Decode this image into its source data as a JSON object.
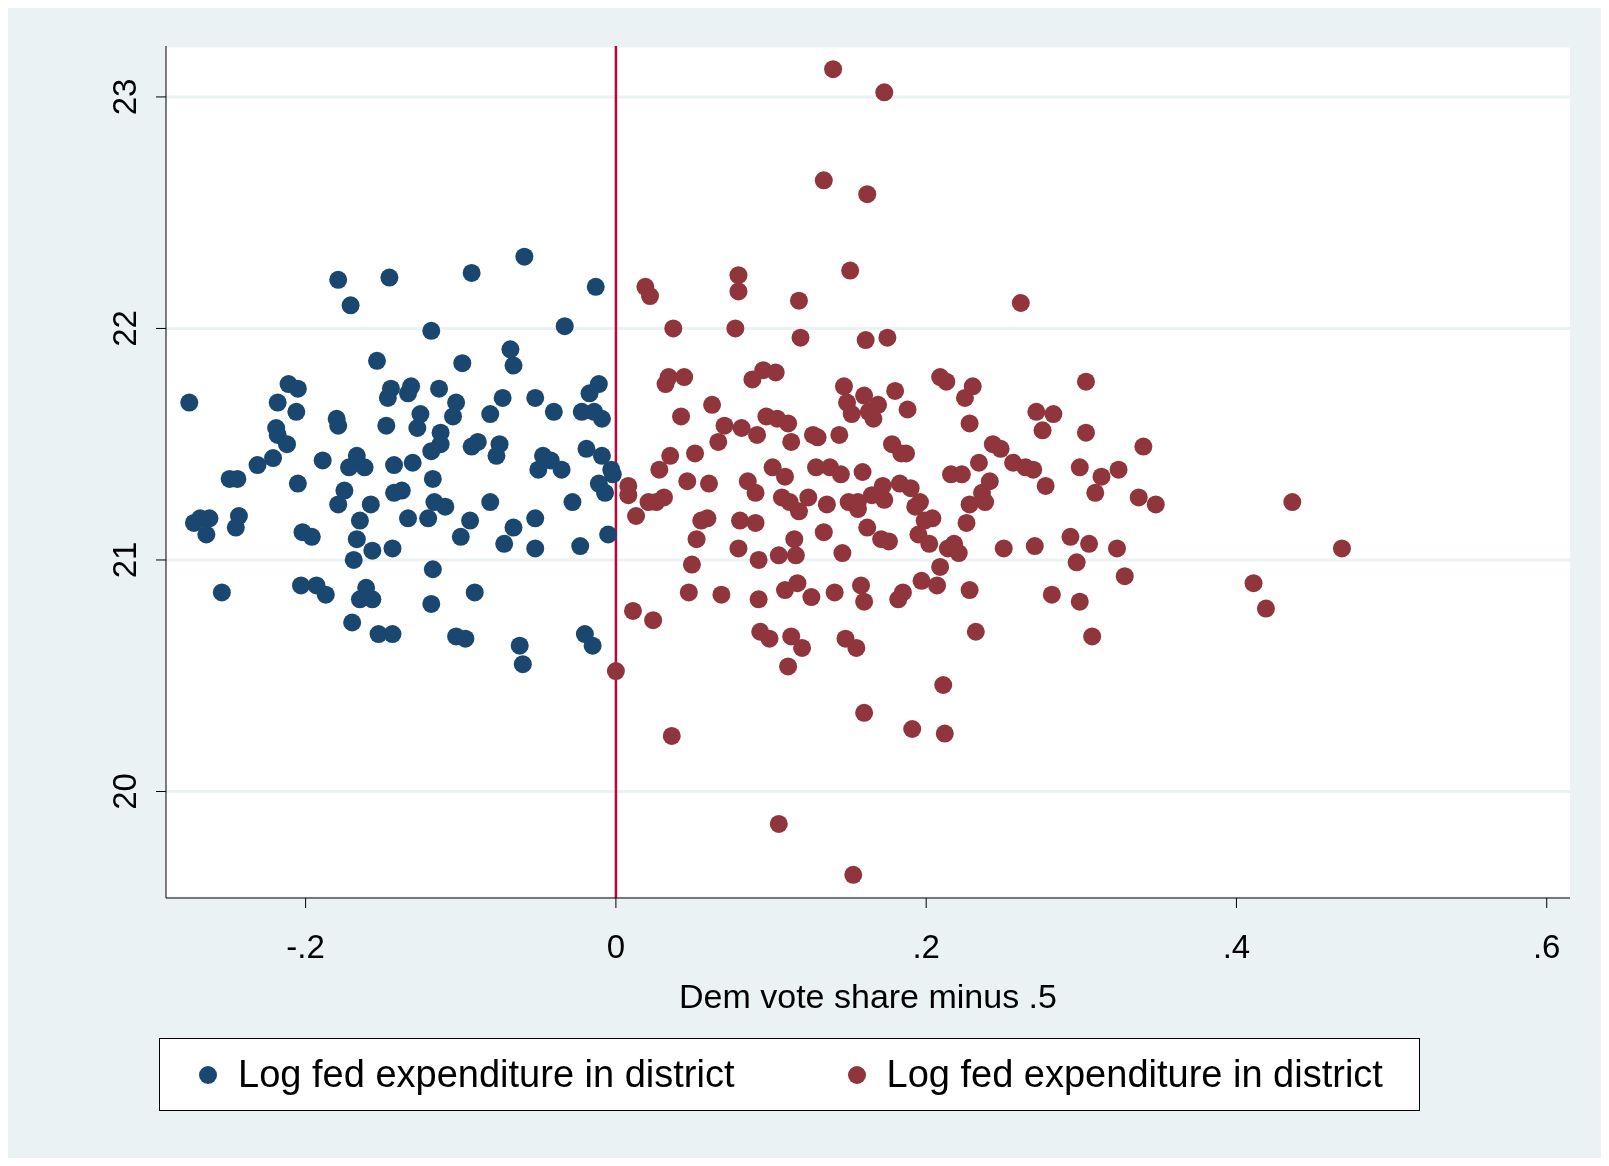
{
  "chart_data": {
    "type": "scatter",
    "xlabel": "Dem vote share minus .5",
    "xlim": [
      -0.29,
      0.615
    ],
    "ylim": [
      19.54,
      23.22
    ],
    "xticks": [
      {
        "value": -0.2,
        "label": "-.2"
      },
      {
        "value": 0,
        "label": "0"
      },
      {
        "value": 0.2,
        "label": ".2"
      },
      {
        "value": 0.4,
        "label": ".4"
      },
      {
        "value": 0.6,
        "label": ".6"
      }
    ],
    "yticks": [
      20,
      21,
      22,
      23
    ],
    "grid": "y",
    "legend": "bottom",
    "marker": "circle",
    "ref_lines": [
      {
        "axis": "x",
        "value": 0,
        "color": "#c10534"
      }
    ],
    "series": [
      {
        "name": "Log fed expenditure in district",
        "color": "#1a476f",
        "x": [
          -0.275,
          -0.272,
          -0.268,
          -0.262,
          -0.264,
          -0.254,
          -0.249,
          -0.244,
          -0.245,
          -0.243,
          -0.231,
          -0.221,
          -0.218,
          -0.219,
          -0.218,
          -0.212,
          -0.211,
          -0.206,
          -0.205,
          -0.205,
          -0.203,
          -0.202,
          -0.196,
          -0.193,
          -0.187,
          -0.189,
          -0.18,
          -0.179,
          -0.179,
          -0.179,
          -0.171,
          -0.172,
          -0.175,
          -0.17,
          -0.169,
          -0.167,
          -0.167,
          -0.165,
          -0.165,
          -0.161,
          -0.162,
          -0.158,
          -0.157,
          -0.157,
          -0.154,
          -0.153,
          -0.147,
          -0.148,
          -0.146,
          -0.145,
          -0.144,
          -0.144,
          -0.143,
          -0.143,
          -0.138,
          -0.134,
          -0.134,
          -0.132,
          -0.131,
          -0.128,
          -0.126,
          -0.121,
          -0.119,
          -0.119,
          -0.119,
          -0.118,
          -0.118,
          -0.117,
          -0.114,
          -0.113,
          -0.113,
          -0.11,
          -0.105,
          -0.103,
          -0.103,
          -0.1,
          -0.099,
          -0.097,
          -0.094,
          -0.093,
          -0.093,
          -0.091,
          -0.089,
          -0.081,
          -0.081,
          -0.077,
          -0.075,
          -0.072,
          -0.073,
          -0.068,
          -0.066,
          -0.066,
          -0.059,
          -0.062,
          -0.06,
          -0.052,
          -0.052,
          -0.052,
          -0.05,
          -0.047,
          -0.042,
          -0.04,
          -0.035,
          -0.033,
          -0.028,
          -0.023,
          -0.022,
          -0.02,
          -0.019,
          -0.015,
          -0.017,
          -0.014,
          -0.013,
          -0.011,
          -0.011,
          -0.009,
          -0.009,
          -0.007,
          -0.005,
          -0.003,
          -0.002
        ],
        "values": [
          21.68,
          21.16,
          21.18,
          21.18,
          21.11,
          20.86,
          21.35,
          21.35,
          21.14,
          21.19,
          21.41,
          21.44,
          21.68,
          21.57,
          21.54,
          21.5,
          21.76,
          21.64,
          21.74,
          21.33,
          20.89,
          21.12,
          21.1,
          20.89,
          20.85,
          21.43,
          21.61,
          21.58,
          21.24,
          22.21,
          22.1,
          21.4,
          21.3,
          20.73,
          21.0,
          21.45,
          21.09,
          20.83,
          21.17,
          20.88,
          21.4,
          21.24,
          20.83,
          21.04,
          21.86,
          20.68,
          21.7,
          21.58,
          22.22,
          21.74,
          20.68,
          21.05,
          21.41,
          21.29,
          21.3,
          21.18,
          21.72,
          21.75,
          21.42,
          21.57,
          21.63,
          21.18,
          21.99,
          21.47,
          20.81,
          20.96,
          21.35,
          21.25,
          21.74,
          21.55,
          21.5,
          21.23,
          21.62,
          21.68,
          20.67,
          21.1,
          21.85,
          20.66,
          21.17,
          21.49,
          22.24,
          20.86,
          21.51,
          21.63,
          21.25,
          21.45,
          21.5,
          21.07,
          21.7,
          21.91,
          21.84,
          21.14,
          22.31,
          20.63,
          20.55,
          21.05,
          21.18,
          21.7,
          21.39,
          21.45,
          21.43,
          21.64,
          21.39,
          22.01,
          21.25,
          21.06,
          21.64,
          20.68,
          21.48,
          20.63,
          21.72,
          21.64,
          22.18,
          21.76,
          21.33,
          21.61,
          21.45,
          21.29,
          21.11,
          21.39,
          21.37
        ]
      },
      {
        "name": "Log fed expenditure in district",
        "color": "#90353b",
        "x": [
          0.0,
          0.008,
          0.008,
          0.011,
          0.013,
          0.019,
          0.021,
          0.022,
          0.024,
          0.026,
          0.028,
          0.031,
          0.032,
          0.034,
          0.035,
          0.036,
          0.037,
          0.042,
          0.044,
          0.046,
          0.047,
          0.049,
          0.051,
          0.052,
          0.055,
          0.059,
          0.06,
          0.062,
          0.066,
          0.068,
          0.07,
          0.077,
          0.079,
          0.079,
          0.079,
          0.08,
          0.081,
          0.085,
          0.088,
          0.09,
          0.09,
          0.091,
          0.092,
          0.092,
          0.093,
          0.095,
          0.097,
          0.099,
          0.101,
          0.103,
          0.104,
          0.105,
          0.105,
          0.107,
          0.109,
          0.109,
          0.111,
          0.111,
          0.112,
          0.113,
          0.113,
          0.115,
          0.116,
          0.117,
          0.118,
          0.118,
          0.119,
          0.12,
          0.124,
          0.126,
          0.127,
          0.129,
          0.13,
          0.134,
          0.134,
          0.136,
          0.138,
          0.14,
          0.141,
          0.144,
          0.145,
          0.146,
          0.147,
          0.148,
          0.149,
          0.15,
          0.151,
          0.152,
          0.153,
          0.155,
          0.156,
          0.156,
          0.158,
          0.159,
          0.16,
          0.16,
          0.16,
          0.161,
          0.162,
          0.162,
          0.163,
          0.165,
          0.166,
          0.169,
          0.171,
          0.172,
          0.173,
          0.173,
          0.175,
          0.176,
          0.178,
          0.18,
          0.182,
          0.183,
          0.184,
          0.185,
          0.187,
          0.188,
          0.19,
          0.191,
          0.193,
          0.195,
          0.197,
          0.196,
          0.199,
          0.202,
          0.204,
          0.207,
          0.209,
          0.209,
          0.211,
          0.212,
          0.213,
          0.214,
          0.216,
          0.218,
          0.221,
          0.223,
          0.225,
          0.226,
          0.228,
          0.228,
          0.228,
          0.23,
          0.232,
          0.234,
          0.236,
          0.238,
          0.241,
          0.243,
          0.248,
          0.25,
          0.256,
          0.261,
          0.264,
          0.269,
          0.27,
          0.271,
          0.275,
          0.277,
          0.281,
          0.282,
          0.293,
          0.297,
          0.299,
          0.299,
          0.303,
          0.303,
          0.305,
          0.307,
          0.309,
          0.313,
          0.323,
          0.324,
          0.328,
          0.337,
          0.34,
          0.348,
          0.411,
          0.419,
          0.436,
          0.468
        ],
        "values": [
          20.52,
          21.32,
          21.28,
          20.78,
          21.19,
          22.18,
          21.25,
          22.14,
          20.74,
          21.25,
          21.39,
          21.27,
          21.76,
          21.79,
          21.45,
          20.24,
          22.0,
          21.62,
          21.79,
          21.34,
          20.86,
          20.98,
          21.46,
          21.09,
          21.17,
          21.18,
          21.33,
          21.67,
          21.51,
          20.85,
          21.58,
          22.0,
          22.16,
          22.23,
          21.05,
          21.17,
          21.57,
          21.34,
          21.78,
          21.29,
          21.16,
          21.54,
          20.83,
          21.0,
          20.69,
          21.82,
          21.62,
          20.66,
          21.4,
          21.81,
          21.61,
          21.02,
          19.86,
          21.27,
          21.36,
          20.87,
          21.59,
          20.54,
          21.25,
          21.51,
          20.67,
          21.09,
          21.02,
          20.9,
          22.12,
          21.21,
          21.96,
          20.62,
          21.27,
          20.84,
          21.54,
          21.4,
          21.53,
          22.64,
          21.12,
          21.24,
          21.4,
          23.12,
          20.86,
          21.54,
          21.37,
          21.03,
          21.75,
          20.66,
          21.68,
          21.25,
          22.25,
          21.63,
          19.64,
          20.62,
          21.22,
          21.25,
          20.89,
          21.38,
          20.34,
          21.71,
          20.82,
          21.95,
          22.58,
          21.14,
          21.64,
          21.28,
          21.61,
          21.67,
          21.09,
          21.32,
          21.26,
          23.02,
          21.96,
          21.08,
          21.5,
          21.73,
          20.83,
          21.33,
          21.46,
          20.86,
          21.46,
          21.65,
          21.31,
          20.27,
          21.23,
          21.11,
          20.91,
          21.25,
          21.17,
          21.07,
          21.18,
          20.89,
          20.97,
          21.79,
          20.46,
          20.25,
          21.77,
          21.05,
          21.37,
          21.07,
          21.03,
          21.37,
          21.7,
          21.16,
          21.24,
          21.59,
          20.87,
          21.75,
          20.69,
          21.42,
          21.29,
          21.25,
          21.34,
          21.5,
          21.48,
          21.05,
          21.42,
          22.11,
          21.4,
          21.39,
          21.06,
          21.64,
          21.56,
          21.32,
          20.85,
          21.63,
          21.1,
          20.99,
          21.4,
          20.82,
          21.55,
          21.77,
          21.07,
          20.67,
          21.29,
          21.36,
          21.05,
          21.39,
          20.93,
          21.27,
          21.49,
          21.24,
          20.9,
          20.79,
          21.25,
          21.05
        ]
      }
    ]
  }
}
